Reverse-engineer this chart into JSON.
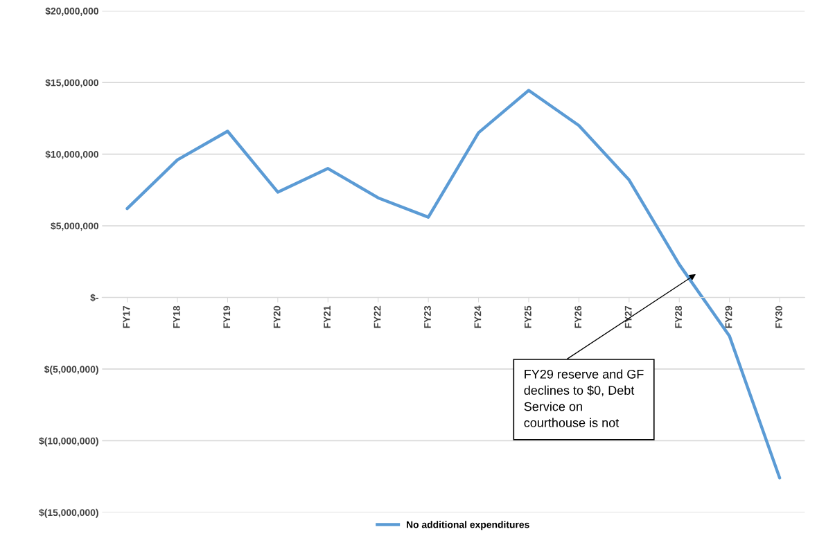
{
  "chart_data": {
    "type": "line",
    "categories": [
      "FY17",
      "FY18",
      "FY19",
      "FY20",
      "FY21",
      "FY22",
      "FY23",
      "FY24",
      "FY25",
      "FY26",
      "FY27",
      "FY28",
      "FY29",
      "FY30"
    ],
    "series": [
      {
        "name": "No additional expenditures",
        "color": "#5b9bd5",
        "values": [
          6200000,
          9600000,
          11600000,
          7350000,
          9000000,
          6950000,
          5600000,
          11500000,
          14450000,
          12000000,
          8200000,
          2300000,
          -2700000,
          -12600000
        ]
      }
    ],
    "ylim": [
      -15000000,
      20000000
    ],
    "yticks": [
      {
        "value": -15000000,
        "label": "$(15,000,000)"
      },
      {
        "value": -10000000,
        "label": "$(10,000,000)"
      },
      {
        "value": -5000000,
        "label": "$(5,000,000)"
      },
      {
        "value": 0,
        "label": "$-"
      },
      {
        "value": 5000000,
        "label": "$5,000,000"
      },
      {
        "value": 10000000,
        "label": "$10,000,000"
      },
      {
        "value": 15000000,
        "label": "$15,000,000"
      },
      {
        "value": 20000000,
        "label": "$20,000,000"
      }
    ],
    "grid": "y",
    "legend": "bottom",
    "marker": "none",
    "line_style": "solid",
    "annotations": [
      "FY29 reserve and GF\ndeclines to $0, Debt\nService on\ncourthouse is not"
    ]
  }
}
